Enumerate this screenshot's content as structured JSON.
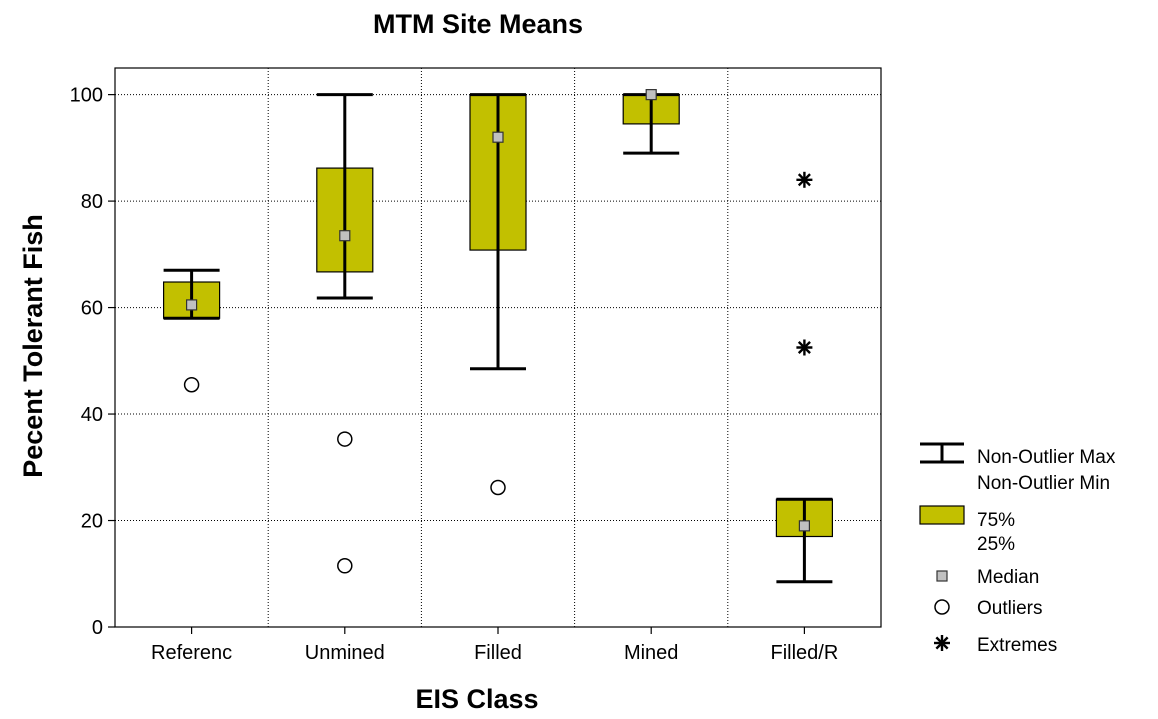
{
  "chart_data": {
    "type": "boxplot",
    "title": "MTM Site Means",
    "xlabel": "EIS Class",
    "ylabel": "Pecent Tolerant Fish",
    "ylim": [
      0,
      105
    ],
    "yticks": [
      0,
      20,
      40,
      60,
      80,
      100
    ],
    "grid": true,
    "box_color": "#c2c000",
    "categories": [
      "Referenc",
      "Unmined",
      "Filled",
      "Mined",
      "Filled/R"
    ],
    "boxes": [
      {
        "category": "Referenc",
        "median": 60.5,
        "q1": 58.0,
        "q3": 64.8,
        "whisker_min": 58.0,
        "whisker_max": 67.0,
        "outliers": [
          45.5
        ],
        "extremes": []
      },
      {
        "category": "Unmined",
        "median": 73.5,
        "q1": 66.7,
        "q3": 86.2,
        "whisker_min": 61.8,
        "whisker_max": 100.0,
        "outliers": [
          35.3,
          11.5
        ],
        "extremes": []
      },
      {
        "category": "Filled",
        "median": 92.0,
        "q1": 70.8,
        "q3": 100.0,
        "whisker_min": 48.5,
        "whisker_max": 100.0,
        "outliers": [
          26.2
        ],
        "extremes": []
      },
      {
        "category": "Mined",
        "median": 100.0,
        "q1": 94.5,
        "q3": 100.0,
        "whisker_min": 89.0,
        "whisker_max": 100.0,
        "outliers": [],
        "extremes": []
      },
      {
        "category": "Filled/R",
        "median": 19.0,
        "q1": 17.0,
        "q3": 24.0,
        "whisker_min": 8.5,
        "whisker_max": 24.0,
        "outliers": [],
        "extremes": [
          84.0,
          52.5
        ]
      }
    ],
    "legend": {
      "placement": "right",
      "items": [
        {
          "symbol": "whisker",
          "lines": [
            "Non-Outlier Max",
            "Non-Outlier Min"
          ]
        },
        {
          "symbol": "box",
          "lines": [
            "75%",
            "25%"
          ]
        },
        {
          "symbol": "median",
          "lines": [
            "Median"
          ]
        },
        {
          "symbol": "outlier",
          "lines": [
            "Outliers"
          ]
        },
        {
          "symbol": "extreme",
          "lines": [
            "Extremes"
          ]
        }
      ]
    }
  }
}
